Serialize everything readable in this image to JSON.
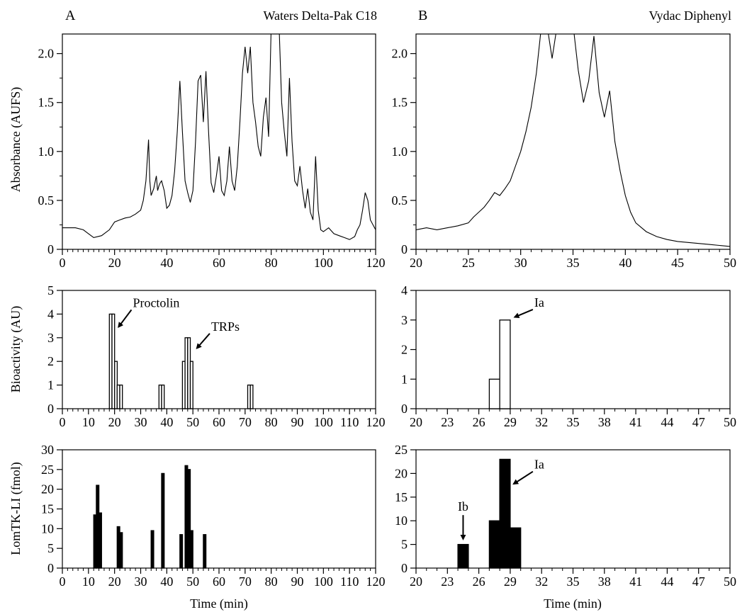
{
  "chart_data": [
    {
      "id": "A-top",
      "type": "line",
      "panel_letter": "A",
      "title": "Waters Delta-Pak C18",
      "ylabel": "Absorbance (AUFS)",
      "xlabel": "",
      "xlim": [
        0,
        120
      ],
      "ylim": [
        0,
        2.2
      ],
      "xticks": [
        0,
        20,
        40,
        60,
        80,
        100,
        120
      ],
      "yticks": [
        0,
        0.5,
        1.0,
        1.5,
        2.0
      ],
      "yticklabels": [
        "0",
        "0.5",
        "1.0",
        "1.5",
        "2.0"
      ],
      "series": [
        {
          "x": [
            0,
            5,
            8,
            10,
            12,
            15,
            18,
            20,
            22,
            24,
            26,
            28,
            30,
            31,
            32,
            33,
            33.5,
            34,
            35,
            36,
            36.5,
            37,
            37.5,
            38,
            39,
            40,
            41,
            42,
            43,
            44,
            45,
            46,
            47,
            48,
            49,
            50,
            51,
            52,
            53,
            54,
            55,
            56,
            57,
            58,
            59,
            60,
            61,
            62,
            63,
            64,
            65,
            66,
            67,
            68,
            69,
            70,
            71,
            72,
            73,
            74,
            75,
            76,
            77,
            78,
            79,
            80,
            81,
            82,
            83,
            84,
            85,
            86,
            87,
            88,
            89,
            90,
            91,
            92,
            93,
            94,
            95,
            96,
            97,
            98,
            99,
            100,
            102,
            104,
            106,
            108,
            110,
            112,
            113,
            114,
            115,
            116,
            117,
            118,
            120
          ],
          "y": [
            0.22,
            0.22,
            0.2,
            0.16,
            0.12,
            0.14,
            0.2,
            0.28,
            0.3,
            0.32,
            0.33,
            0.36,
            0.4,
            0.5,
            0.7,
            1.12,
            0.7,
            0.55,
            0.62,
            0.75,
            0.6,
            0.65,
            0.68,
            0.7,
            0.6,
            0.42,
            0.45,
            0.55,
            0.8,
            1.2,
            1.72,
            1.2,
            0.7,
            0.58,
            0.48,
            0.6,
            1.1,
            1.72,
            1.78,
            1.3,
            1.82,
            1.2,
            0.68,
            0.58,
            0.75,
            0.95,
            0.6,
            0.55,
            0.7,
            1.05,
            0.7,
            0.6,
            0.85,
            1.3,
            1.8,
            2.07,
            1.8,
            2.07,
            1.5,
            1.3,
            1.05,
            0.95,
            1.35,
            1.55,
            1.15,
            2.3,
            2.3,
            2.3,
            2.3,
            1.5,
            1.2,
            0.95,
            1.75,
            1.1,
            0.7,
            0.65,
            0.85,
            0.6,
            0.42,
            0.62,
            0.38,
            0.3,
            0.95,
            0.4,
            0.2,
            0.18,
            0.22,
            0.16,
            0.14,
            0.12,
            0.1,
            0.13,
            0.2,
            0.25,
            0.4,
            0.58,
            0.5,
            0.3,
            0.2
          ]
        }
      ]
    },
    {
      "id": "B-top",
      "type": "line",
      "panel_letter": "B",
      "title": "Vydac Diphenyl",
      "ylabel": "",
      "xlabel": "",
      "xlim": [
        20,
        50
      ],
      "ylim": [
        0,
        2.2
      ],
      "xticks": [
        20,
        25,
        30,
        35,
        40,
        45,
        50
      ],
      "yticks": [
        0,
        0.5,
        1.0,
        1.5,
        2.0
      ],
      "yticklabels": [
        "0",
        "0.5",
        "1.0",
        "1.5",
        "2.0"
      ],
      "series": [
        {
          "x": [
            20,
            21,
            22,
            23,
            24,
            25,
            25.5,
            26,
            26.5,
            27,
            27.5,
            28,
            28.5,
            29,
            29.5,
            30,
            30.5,
            31,
            31.5,
            32,
            32.5,
            33,
            33.5,
            34,
            34.5,
            35,
            35.5,
            36,
            36.5,
            37,
            37.5,
            38,
            38.5,
            39,
            39.5,
            40,
            40.5,
            41,
            42,
            43,
            44,
            45,
            46,
            47,
            48,
            49,
            50
          ],
          "y": [
            0.2,
            0.22,
            0.2,
            0.22,
            0.24,
            0.27,
            0.33,
            0.38,
            0.43,
            0.5,
            0.58,
            0.55,
            0.62,
            0.7,
            0.85,
            1.0,
            1.2,
            1.45,
            1.8,
            2.3,
            2.3,
            1.95,
            2.3,
            2.3,
            2.3,
            2.3,
            1.83,
            1.5,
            1.72,
            2.18,
            1.6,
            1.35,
            1.62,
            1.1,
            0.8,
            0.55,
            0.38,
            0.27,
            0.18,
            0.13,
            0.1,
            0.08,
            0.07,
            0.06,
            0.05,
            0.04,
            0.03
          ]
        }
      ]
    },
    {
      "id": "A-mid",
      "type": "bar",
      "fill": "open",
      "ylabel": "Bioactivity (AU)",
      "xlabel": "",
      "xlim": [
        0,
        120
      ],
      "ylim": [
        0,
        5
      ],
      "xticks": [
        0,
        10,
        20,
        30,
        40,
        50,
        60,
        70,
        80,
        90,
        100,
        110,
        120
      ],
      "yticks": [
        0,
        1,
        2,
        3,
        4,
        5
      ],
      "bin_width": 1,
      "x": [
        18,
        19,
        20,
        21,
        22,
        37,
        38,
        46,
        47,
        48,
        49,
        71,
        72
      ],
      "values": [
        4,
        4,
        2,
        1,
        1,
        1,
        1,
        2,
        3,
        3,
        2,
        1,
        1
      ],
      "annotations": [
        {
          "text": "Proctolin",
          "x": 21,
          "y": 3.4,
          "tx": 27,
          "ty": 4.3
        },
        {
          "text": "TRPs",
          "x": 51,
          "y": 2.5,
          "tx": 57,
          "ty": 3.3
        }
      ]
    },
    {
      "id": "B-mid",
      "type": "bar",
      "fill": "open",
      "ylabel": "",
      "xlabel": "",
      "xlim": [
        20,
        50
      ],
      "ylim": [
        0,
        4
      ],
      "xticks": [
        20,
        23,
        26,
        29,
        32,
        35,
        38,
        41,
        44,
        47,
        50
      ],
      "yticks": [
        0,
        1,
        2,
        3,
        4
      ],
      "bin_width": 1,
      "x": [
        27,
        28
      ],
      "values": [
        1,
        3
      ],
      "annotations": [
        {
          "text": "Ia",
          "x": 29.3,
          "y": 3.05,
          "tx": 31.3,
          "ty": 3.45
        }
      ]
    },
    {
      "id": "A-bot",
      "type": "bar",
      "fill": "solid",
      "ylabel": "LomTK-LI (fmol)",
      "xlabel": "Time (min)",
      "xlim": [
        0,
        120
      ],
      "ylim": [
        0,
        30
      ],
      "xticks": [
        0,
        10,
        20,
        30,
        40,
        50,
        60,
        70,
        80,
        90,
        100,
        110,
        120
      ],
      "yticks": [
        0,
        5,
        10,
        15,
        20,
        25,
        30
      ],
      "bin_width": 1,
      "x": [
        12,
        13,
        14,
        21,
        22,
        34,
        38,
        45,
        47,
        48,
        49,
        54
      ],
      "values": [
        13.5,
        21,
        14,
        10.5,
        9,
        9.5,
        24,
        8.5,
        26,
        25,
        9.5,
        8.5
      ],
      "annotations": []
    },
    {
      "id": "B-bot",
      "type": "bar",
      "fill": "solid",
      "ylabel": "",
      "xlabel": "Time (min)",
      "xlim": [
        20,
        50
      ],
      "ylim": [
        0,
        25
      ],
      "xticks": [
        20,
        23,
        26,
        29,
        32,
        35,
        38,
        41,
        44,
        47,
        50
      ],
      "yticks": [
        0,
        5,
        10,
        15,
        20,
        25
      ],
      "bin_width": 1,
      "x": [
        24,
        27,
        28,
        29
      ],
      "values": [
        5,
        10,
        23,
        8.5
      ],
      "annotations": [
        {
          "text": "Ib",
          "x": 24.5,
          "y": 6,
          "tx": 24.5,
          "ty": 11.5,
          "dir": "down"
        },
        {
          "text": "Ia",
          "x": 29.2,
          "y": 17.5,
          "tx": 31.3,
          "ty": 21
        }
      ]
    }
  ]
}
